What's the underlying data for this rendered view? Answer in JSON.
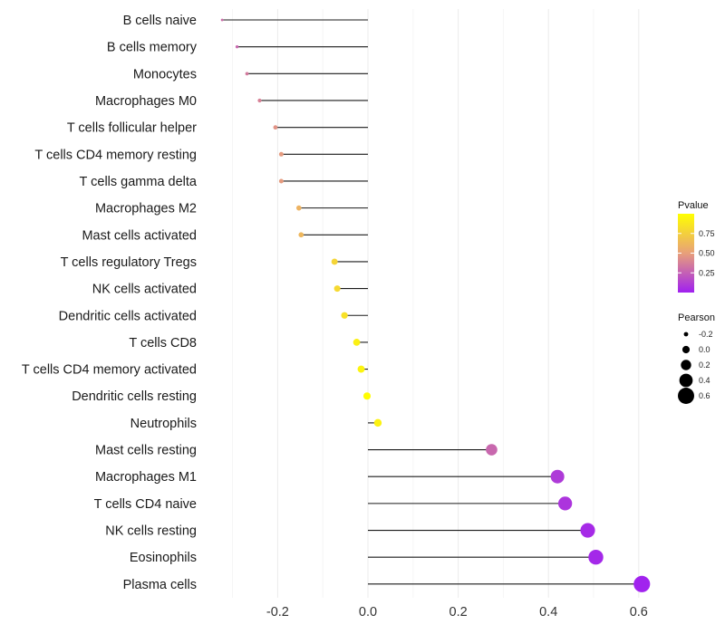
{
  "chart_data": {
    "type": "lollipop",
    "title": "",
    "xlabel": "",
    "ylabel": "",
    "xlim": [
      -0.34,
      0.62
    ],
    "x_ticks": [
      -0.2,
      0.0,
      0.2,
      0.4,
      0.6
    ],
    "x_tick_labels": [
      "-0.2",
      "0.0",
      "0.2",
      "0.4",
      "0.6"
    ],
    "categories": [
      "B cells naive",
      "B cells memory",
      "Monocytes",
      "Macrophages M0",
      "T cells follicular helper",
      "T cells CD4 memory resting",
      "T cells gamma delta",
      "Macrophages M2",
      "Mast cells activated",
      "T cells regulatory  Tregs ",
      "NK cells activated",
      "Dendritic cells activated",
      "T cells CD8",
      "T cells CD4 memory activated",
      "Dendritic cells resting",
      "Neutrophils",
      "Mast cells resting",
      "Macrophages M1",
      "T cells CD4 naive",
      "NK cells resting",
      "Eosinophils",
      "Plasma cells"
    ],
    "values": [
      -0.323,
      -0.29,
      -0.268,
      -0.24,
      -0.205,
      -0.192,
      -0.192,
      -0.153,
      -0.148,
      -0.074,
      -0.068,
      -0.052,
      -0.025,
      -0.015,
      -0.002,
      0.022,
      0.274,
      0.42,
      0.437,
      0.487,
      0.505,
      0.607
    ],
    "pvalues": [
      0.3,
      0.28,
      0.35,
      0.38,
      0.45,
      0.48,
      0.48,
      0.6,
      0.62,
      0.78,
      0.8,
      0.84,
      0.92,
      0.94,
      0.99,
      0.93,
      0.28,
      0.1,
      0.08,
      0.04,
      0.03,
      0.01
    ],
    "legend_color": {
      "title": "Pvalue",
      "range": [
        0.0,
        1.0
      ],
      "ticks": [
        0.25,
        0.5,
        0.75
      ],
      "tick_labels": [
        "0.25",
        "0.50",
        "0.75"
      ],
      "colors": [
        "#a020f0",
        "#e8a07a",
        "#ffff00"
      ]
    },
    "legend_size": {
      "title": "Pearson",
      "values": [
        -0.2,
        0.0,
        0.2,
        0.4,
        0.6
      ],
      "labels": [
        "-0.2",
        "0.0",
        "0.2",
        "0.4",
        "0.6"
      ]
    },
    "grid": true,
    "legend_position": "right"
  }
}
